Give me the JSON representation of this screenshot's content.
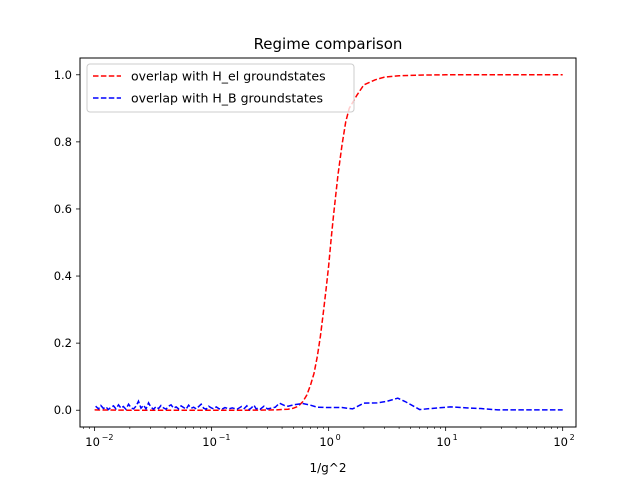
{
  "chart_data": {
    "type": "line",
    "title": "Regime comparison",
    "xlabel": "1/g^2",
    "ylabel": "",
    "x_scale": "log",
    "xlim": [
      0.0075,
      130
    ],
    "ylim": [
      -0.05,
      1.05
    ],
    "x_ticks": [
      {
        "value": 0.01,
        "base": "10",
        "exp": "−2"
      },
      {
        "value": 0.1,
        "base": "10",
        "exp": "−1"
      },
      {
        "value": 1,
        "base": "10",
        "exp": "0"
      },
      {
        "value": 10,
        "base": "10",
        "exp": "1"
      },
      {
        "value": 100,
        "base": "10",
        "exp": "2"
      }
    ],
    "y_ticks": [
      {
        "value": 0.0,
        "label": "0.0"
      },
      {
        "value": 0.2,
        "label": "0.2"
      },
      {
        "value": 0.4,
        "label": "0.4"
      },
      {
        "value": 0.6,
        "label": "0.6"
      },
      {
        "value": 0.8,
        "label": "0.8"
      },
      {
        "value": 1.0,
        "label": "1.0"
      }
    ],
    "grid": false,
    "legend_position": "top-left",
    "series": [
      {
        "name": "overlap with H_el groundstates",
        "color": "#ff0000",
        "style": "dashed",
        "points": [
          [
            0.01,
            0.001
          ],
          [
            0.02,
            0.0
          ],
          [
            0.05,
            0.0
          ],
          [
            0.1,
            0.0
          ],
          [
            0.2,
            0.0
          ],
          [
            0.35,
            0.001
          ],
          [
            0.45,
            0.003
          ],
          [
            0.5,
            0.006
          ],
          [
            0.55,
            0.012
          ],
          [
            0.6,
            0.025
          ],
          [
            0.65,
            0.045
          ],
          [
            0.7,
            0.075
          ],
          [
            0.75,
            0.11
          ],
          [
            0.8,
            0.16
          ],
          [
            0.85,
            0.22
          ],
          [
            0.9,
            0.29
          ],
          [
            0.95,
            0.36
          ],
          [
            1.0,
            0.43
          ],
          [
            1.05,
            0.51
          ],
          [
            1.1,
            0.58
          ],
          [
            1.2,
            0.7
          ],
          [
            1.3,
            0.79
          ],
          [
            1.4,
            0.86
          ],
          [
            1.5,
            0.9
          ],
          [
            1.75,
            0.94
          ],
          [
            2.0,
            0.97
          ],
          [
            2.5,
            0.985
          ],
          [
            3.0,
            0.993
          ],
          [
            4.0,
            0.997
          ],
          [
            6.0,
            0.999
          ],
          [
            10.0,
            1.0
          ],
          [
            30.0,
            1.0
          ],
          [
            100.0,
            1.0
          ]
        ]
      },
      {
        "name": "overlap with H_B groundstates",
        "color": "#0000ff",
        "style": "dashed",
        "points": [
          [
            0.0102,
            0.012
          ],
          [
            0.0108,
            0.004
          ],
          [
            0.0113,
            0.014
          ],
          [
            0.0119,
            0.005
          ],
          [
            0.0125,
            0.01
          ],
          [
            0.0131,
            0.002
          ],
          [
            0.0138,
            0.009
          ],
          [
            0.0145,
            0.013
          ],
          [
            0.0152,
            0.004
          ],
          [
            0.016,
            0.016
          ],
          [
            0.0168,
            0.006
          ],
          [
            0.0176,
            0.011
          ],
          [
            0.0185,
            0.003
          ],
          [
            0.0195,
            0.018
          ],
          [
            0.0205,
            0.007
          ],
          [
            0.0215,
            0.004
          ],
          [
            0.0226,
            0.012
          ],
          [
            0.0237,
            0.027
          ],
          [
            0.0249,
            0.006
          ],
          [
            0.0262,
            0.015
          ],
          [
            0.0275,
            0.004
          ],
          [
            0.0289,
            0.022
          ],
          [
            0.0303,
            0.009
          ],
          [
            0.0319,
            0.003
          ],
          [
            0.0335,
            0.011
          ],
          [
            0.0352,
            0.005
          ],
          [
            0.0369,
            0.014
          ],
          [
            0.0388,
            0.007
          ],
          [
            0.0408,
            0.003
          ],
          [
            0.0428,
            0.012
          ],
          [
            0.045,
            0.016
          ],
          [
            0.0473,
            0.006
          ],
          [
            0.0497,
            0.01
          ],
          [
            0.0522,
            0.004
          ],
          [
            0.0548,
            0.013
          ],
          [
            0.0576,
            0.008
          ],
          [
            0.0605,
            0.003
          ],
          [
            0.0636,
            0.015
          ],
          [
            0.0668,
            0.006
          ],
          [
            0.0702,
            0.009
          ],
          [
            0.0738,
            0.004
          ],
          [
            0.0775,
            0.011
          ],
          [
            0.0814,
            0.018
          ],
          [
            0.0855,
            0.006
          ],
          [
            0.0899,
            0.003
          ],
          [
            0.0944,
            0.012
          ],
          [
            0.0992,
            0.007
          ],
          [
            0.1042,
            0.004
          ],
          [
            0.1095,
            0.01
          ],
          [
            0.115,
            0.005
          ],
          [
            0.121,
            0.002
          ],
          [
            0.13,
            0.008
          ],
          [
            0.14,
            0.004
          ],
          [
            0.15,
            0.007
          ],
          [
            0.165,
            0.003
          ],
          [
            0.18,
            0.011
          ],
          [
            0.19,
            0.005
          ],
          [
            0.2,
            0.013
          ],
          [
            0.21,
            0.002
          ],
          [
            0.22,
            0.008
          ],
          [
            0.23,
            0.015
          ],
          [
            0.24,
            0.004
          ],
          [
            0.25,
            0.006
          ],
          [
            0.26,
            0.003
          ],
          [
            0.28,
            0.012
          ],
          [
            0.3,
            0.004
          ],
          [
            0.32,
            0.006
          ],
          [
            0.35,
            0.009
          ],
          [
            0.38,
            0.021
          ],
          [
            0.42,
            0.014
          ],
          [
            0.45,
            0.012
          ],
          [
            0.5,
            0.016
          ],
          [
            0.6,
            0.02
          ],
          [
            0.7,
            0.015
          ],
          [
            0.8,
            0.009
          ],
          [
            1.0,
            0.008
          ],
          [
            1.3,
            0.008
          ],
          [
            1.6,
            0.004
          ],
          [
            2.0,
            0.021
          ],
          [
            2.6,
            0.022
          ],
          [
            3.1,
            0.026
          ],
          [
            3.9,
            0.036
          ],
          [
            4.5,
            0.026
          ],
          [
            6.0,
            0.002
          ],
          [
            8.0,
            0.006
          ],
          [
            11.0,
            0.01
          ],
          [
            15.0,
            0.007
          ],
          [
            20.0,
            0.005
          ],
          [
            28.0,
            0.001
          ],
          [
            40.0,
            0.001
          ],
          [
            60.0,
            0.001
          ],
          [
            100.0,
            0.001
          ]
        ]
      }
    ]
  }
}
